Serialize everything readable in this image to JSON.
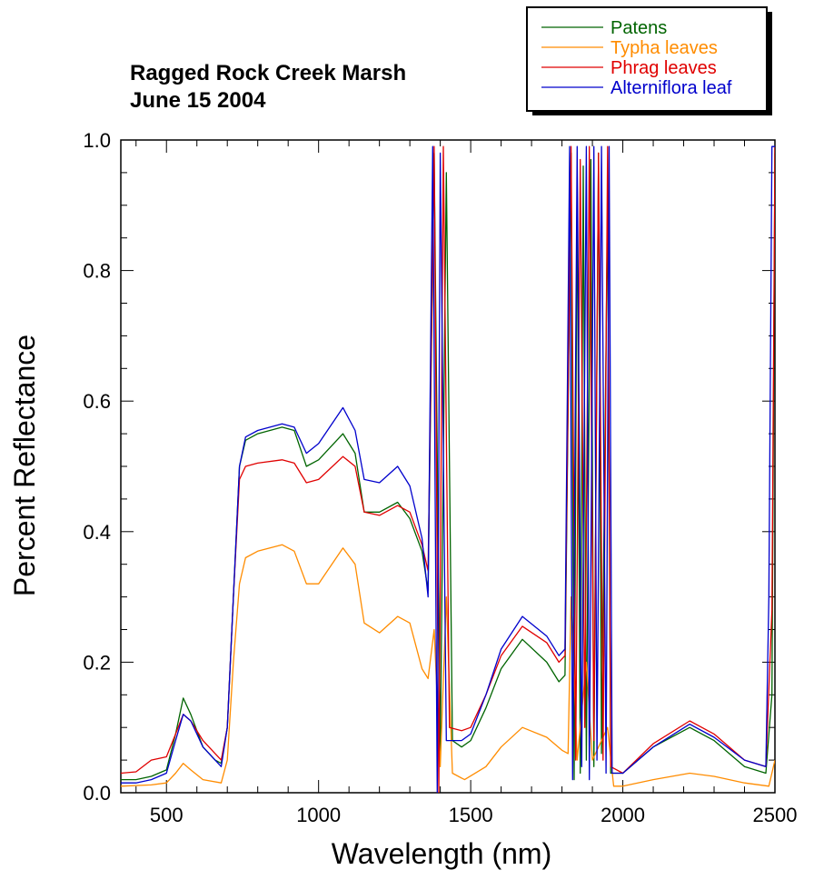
{
  "chart_data": {
    "type": "line",
    "title_lines": [
      "Ragged Rock Creek Marsh",
      "June 15 2004"
    ],
    "xlabel": "Wavelength (nm)",
    "ylabel": "Percent Reflectance",
    "xlim": [
      350,
      2500
    ],
    "ylim": [
      0.0,
      1.0
    ],
    "xticks": [
      500,
      1000,
      1500,
      2000,
      2500
    ],
    "yticks": [
      0.0,
      0.2,
      0.4,
      0.6,
      0.8,
      1.0
    ],
    "ytick_labels": [
      "0.0",
      "0.2",
      "0.4",
      "0.6",
      "0.8",
      "1.0"
    ],
    "grid": false,
    "legend_position": "top-right",
    "series": [
      {
        "name": "Patens",
        "color": "#006400",
        "points": [
          [
            350,
            0.02
          ],
          [
            400,
            0.02
          ],
          [
            450,
            0.025
          ],
          [
            500,
            0.035
          ],
          [
            530,
            0.09
          ],
          [
            555,
            0.145
          ],
          [
            580,
            0.12
          ],
          [
            620,
            0.07
          ],
          [
            660,
            0.05
          ],
          [
            680,
            0.045
          ],
          [
            700,
            0.1
          ],
          [
            720,
            0.3
          ],
          [
            740,
            0.5
          ],
          [
            760,
            0.54
          ],
          [
            800,
            0.55
          ],
          [
            880,
            0.56
          ],
          [
            920,
            0.555
          ],
          [
            960,
            0.5
          ],
          [
            1000,
            0.51
          ],
          [
            1080,
            0.55
          ],
          [
            1120,
            0.52
          ],
          [
            1150,
            0.43
          ],
          [
            1200,
            0.43
          ],
          [
            1260,
            0.445
          ],
          [
            1300,
            0.42
          ],
          [
            1340,
            0.37
          ],
          [
            1360,
            0.31
          ],
          [
            1380,
            0.98
          ],
          [
            1400,
            0.06
          ],
          [
            1420,
            0.95
          ],
          [
            1440,
            0.08
          ],
          [
            1470,
            0.07
          ],
          [
            1500,
            0.08
          ],
          [
            1550,
            0.13
          ],
          [
            1600,
            0.19
          ],
          [
            1670,
            0.235
          ],
          [
            1750,
            0.2
          ],
          [
            1790,
            0.17
          ],
          [
            1810,
            0.18
          ],
          [
            1830,
            0.98
          ],
          [
            1840,
            0.02
          ],
          [
            1850,
            0.95
          ],
          [
            1860,
            0.03
          ],
          [
            1870,
            0.96
          ],
          [
            1880,
            0.05
          ],
          [
            1895,
            0.97
          ],
          [
            1905,
            0.04
          ],
          [
            1920,
            0.98
          ],
          [
            1930,
            0.06
          ],
          [
            1950,
            0.9
          ],
          [
            1960,
            0.03
          ],
          [
            2000,
            0.03
          ],
          [
            2100,
            0.07
          ],
          [
            2220,
            0.1
          ],
          [
            2300,
            0.08
          ],
          [
            2400,
            0.04
          ],
          [
            2470,
            0.03
          ],
          [
            2490,
            0.15
          ],
          [
            2500,
            0.98
          ]
        ]
      },
      {
        "name": "Typha leaves",
        "color": "#FF8C00",
        "points": [
          [
            350,
            0.01
          ],
          [
            450,
            0.012
          ],
          [
            500,
            0.015
          ],
          [
            530,
            0.03
          ],
          [
            555,
            0.045
          ],
          [
            580,
            0.035
          ],
          [
            620,
            0.02
          ],
          [
            680,
            0.015
          ],
          [
            700,
            0.05
          ],
          [
            720,
            0.2
          ],
          [
            740,
            0.32
          ],
          [
            760,
            0.36
          ],
          [
            800,
            0.37
          ],
          [
            880,
            0.38
          ],
          [
            920,
            0.37
          ],
          [
            960,
            0.32
          ],
          [
            1000,
            0.32
          ],
          [
            1080,
            0.375
          ],
          [
            1120,
            0.35
          ],
          [
            1150,
            0.26
          ],
          [
            1200,
            0.245
          ],
          [
            1260,
            0.27
          ],
          [
            1300,
            0.26
          ],
          [
            1340,
            0.19
          ],
          [
            1360,
            0.175
          ],
          [
            1380,
            0.25
          ],
          [
            1400,
            0.04
          ],
          [
            1420,
            0.3
          ],
          [
            1440,
            0.03
          ],
          [
            1480,
            0.02
          ],
          [
            1550,
            0.04
          ],
          [
            1600,
            0.07
          ],
          [
            1670,
            0.1
          ],
          [
            1750,
            0.085
          ],
          [
            1800,
            0.065
          ],
          [
            1820,
            0.06
          ],
          [
            1830,
            0.3
          ],
          [
            1850,
            0.05
          ],
          [
            1880,
            0.2
          ],
          [
            1900,
            0.05
          ],
          [
            1950,
            0.1
          ],
          [
            1970,
            0.01
          ],
          [
            2000,
            0.01
          ],
          [
            2100,
            0.02
          ],
          [
            2220,
            0.03
          ],
          [
            2300,
            0.025
          ],
          [
            2400,
            0.015
          ],
          [
            2480,
            0.01
          ],
          [
            2500,
            0.05
          ]
        ]
      },
      {
        "name": "Phrag leaves",
        "color": "#E00000",
        "points": [
          [
            350,
            0.03
          ],
          [
            400,
            0.032
          ],
          [
            450,
            0.05
          ],
          [
            500,
            0.055
          ],
          [
            530,
            0.09
          ],
          [
            555,
            0.12
          ],
          [
            580,
            0.11
          ],
          [
            620,
            0.08
          ],
          [
            660,
            0.06
          ],
          [
            680,
            0.05
          ],
          [
            700,
            0.1
          ],
          [
            720,
            0.3
          ],
          [
            740,
            0.48
          ],
          [
            760,
            0.5
          ],
          [
            800,
            0.505
          ],
          [
            880,
            0.51
          ],
          [
            920,
            0.505
          ],
          [
            960,
            0.475
          ],
          [
            1000,
            0.48
          ],
          [
            1080,
            0.515
          ],
          [
            1120,
            0.5
          ],
          [
            1150,
            0.43
          ],
          [
            1200,
            0.425
          ],
          [
            1260,
            0.44
          ],
          [
            1300,
            0.43
          ],
          [
            1340,
            0.38
          ],
          [
            1360,
            0.34
          ],
          [
            1380,
            0.99
          ],
          [
            1395,
            0.0
          ],
          [
            1410,
            0.99
          ],
          [
            1430,
            0.1
          ],
          [
            1470,
            0.095
          ],
          [
            1500,
            0.1
          ],
          [
            1550,
            0.15
          ],
          [
            1600,
            0.21
          ],
          [
            1670,
            0.255
          ],
          [
            1750,
            0.23
          ],
          [
            1790,
            0.2
          ],
          [
            1810,
            0.21
          ],
          [
            1830,
            0.99
          ],
          [
            1845,
            0.05
          ],
          [
            1860,
            0.97
          ],
          [
            1875,
            0.1
          ],
          [
            1890,
            0.99
          ],
          [
            1905,
            0.08
          ],
          [
            1920,
            0.98
          ],
          [
            1935,
            0.05
          ],
          [
            1950,
            0.99
          ],
          [
            1960,
            0.04
          ],
          [
            2000,
            0.03
          ],
          [
            2100,
            0.075
          ],
          [
            2220,
            0.11
          ],
          [
            2300,
            0.09
          ],
          [
            2400,
            0.05
          ],
          [
            2470,
            0.04
          ],
          [
            2490,
            0.28
          ],
          [
            2500,
            0.99
          ]
        ]
      },
      {
        "name": "Alterniflora leaf",
        "color": "#0000CC",
        "points": [
          [
            350,
            0.015
          ],
          [
            400,
            0.015
          ],
          [
            450,
            0.02
          ],
          [
            500,
            0.03
          ],
          [
            530,
            0.08
          ],
          [
            555,
            0.12
          ],
          [
            580,
            0.11
          ],
          [
            620,
            0.07
          ],
          [
            660,
            0.05
          ],
          [
            680,
            0.04
          ],
          [
            700,
            0.1
          ],
          [
            720,
            0.3
          ],
          [
            740,
            0.5
          ],
          [
            760,
            0.545
          ],
          [
            800,
            0.555
          ],
          [
            880,
            0.565
          ],
          [
            920,
            0.56
          ],
          [
            960,
            0.52
          ],
          [
            1000,
            0.535
          ],
          [
            1080,
            0.59
          ],
          [
            1120,
            0.555
          ],
          [
            1150,
            0.48
          ],
          [
            1200,
            0.475
          ],
          [
            1260,
            0.5
          ],
          [
            1300,
            0.47
          ],
          [
            1340,
            0.39
          ],
          [
            1360,
            0.3
          ],
          [
            1375,
            0.99
          ],
          [
            1390,
            0.0
          ],
          [
            1400,
            0.98
          ],
          [
            1420,
            0.08
          ],
          [
            1470,
            0.08
          ],
          [
            1500,
            0.09
          ],
          [
            1550,
            0.15
          ],
          [
            1600,
            0.22
          ],
          [
            1670,
            0.27
          ],
          [
            1750,
            0.24
          ],
          [
            1790,
            0.21
          ],
          [
            1810,
            0.22
          ],
          [
            1825,
            0.99
          ],
          [
            1835,
            0.02
          ],
          [
            1850,
            0.99
          ],
          [
            1865,
            0.04
          ],
          [
            1880,
            0.99
          ],
          [
            1890,
            0.02
          ],
          [
            1905,
            0.99
          ],
          [
            1915,
            0.05
          ],
          [
            1930,
            0.99
          ],
          [
            1945,
            0.03
          ],
          [
            1955,
            0.99
          ],
          [
            1965,
            0.03
          ],
          [
            2000,
            0.03
          ],
          [
            2100,
            0.07
          ],
          [
            2220,
            0.105
          ],
          [
            2300,
            0.085
          ],
          [
            2400,
            0.05
          ],
          [
            2470,
            0.04
          ],
          [
            2480,
            0.3
          ],
          [
            2490,
            0.99
          ],
          [
            2500,
            0.99
          ]
        ]
      }
    ]
  }
}
